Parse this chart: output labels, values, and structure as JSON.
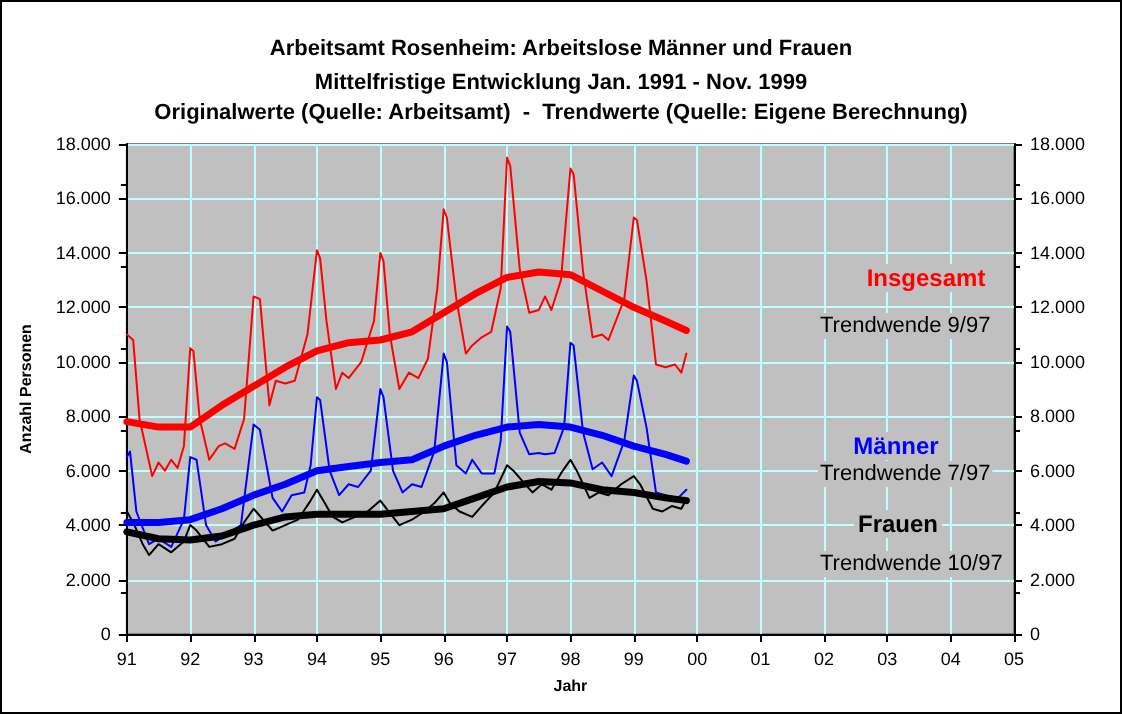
{
  "chart_data": {
    "type": "line",
    "title": "Arbeitsamt Rosenheim: Arbeitslose Männer und Frauen",
    "subtitle": "Mittelfristige Entwicklung Jan. 1991 - Nov. 1999\nOriginalwerte (Quelle: Arbeitsamt)  -  Trendwerte (Quelle: Eigene Berechnung)",
    "xlabel": "Jahr",
    "ylabel": "Anzahl Personen",
    "xlim": [
      1991,
      2005
    ],
    "xticks": [
      {
        "value": 1991,
        "label": "91"
      },
      {
        "value": 1992,
        "label": "92"
      },
      {
        "value": 1993,
        "label": "93"
      },
      {
        "value": 1994,
        "label": "94"
      },
      {
        "value": 1995,
        "label": "95"
      },
      {
        "value": 1996,
        "label": "96"
      },
      {
        "value": 1997,
        "label": "97"
      },
      {
        "value": 1998,
        "label": "98"
      },
      {
        "value": 1999,
        "label": "99"
      },
      {
        "value": 2000,
        "label": "00"
      },
      {
        "value": 2001,
        "label": "01"
      },
      {
        "value": 2002,
        "label": "02"
      },
      {
        "value": 2003,
        "label": "03"
      },
      {
        "value": 2004,
        "label": "04"
      },
      {
        "value": 2005,
        "label": "05"
      }
    ],
    "ylim": [
      0,
      18000
    ],
    "yticks": [
      0,
      {
        "value": 2000,
        "label": "2.000"
      },
      {
        "value": 4000,
        "label": "4.000"
      },
      {
        "value": 6000,
        "label": "6.000"
      },
      {
        "value": 8000,
        "label": "8.000"
      },
      {
        "value": 10000,
        "label": "10.000"
      },
      {
        "value": 12000,
        "label": "12.000"
      },
      {
        "value": 14000,
        "label": "14.000"
      },
      {
        "value": 16000,
        "label": "16.000"
      },
      {
        "value": 18000,
        "label": "18.000"
      }
    ],
    "y2lim": [
      0,
      18000
    ],
    "y2ticks": [
      0,
      {
        "value": 2000,
        "label": "2.000"
      },
      {
        "value": 4000,
        "label": "4.000"
      },
      {
        "value": 6000,
        "label": "6.000"
      },
      {
        "value": 8000,
        "label": "8.000"
      },
      {
        "value": 10000,
        "label": "10.000"
      },
      {
        "value": 12000,
        "label": "12.000"
      },
      {
        "value": 14000,
        "label": "14.000"
      },
      {
        "value": 16000,
        "label": "16.000"
      },
      {
        "value": 18000,
        "label": "18.000"
      }
    ],
    "grid": true,
    "marker": "none",
    "line_style": "solid",
    "series": [
      {
        "color": "#ff0000",
        "x": [
          1991,
          1991.05,
          1991.1,
          1991.2,
          1991.4,
          1991.5,
          1991.6,
          1991.7,
          1991.8,
          1991.9,
          1992,
          1992.05,
          1992.15,
          1992.3,
          1992.45,
          1992.55,
          1992.7,
          1992.85,
          1993,
          1993.1,
          1993.25,
          1993.35,
          1993.5,
          1993.65,
          1993.85,
          1994,
          1994.05,
          1994.15,
          1994.3,
          1994.4,
          1994.5,
          1994.7,
          1994.9,
          1995,
          1995.05,
          1995.15,
          1995.3,
          1995.45,
          1995.6,
          1995.75,
          1995.9,
          1996,
          1996.05,
          1996.2,
          1996.35,
          1996.45,
          1996.6,
          1996.75,
          1996.9,
          1997,
          1997.05,
          1997.2,
          1997.35,
          1997.5,
          1997.6,
          1997.7,
          1997.85,
          1998,
          1998.05,
          1998.2,
          1998.35,
          1998.5,
          1998.6,
          1998.85,
          1999,
          1999.05,
          1999.2,
          1999.35,
          1999.5,
          1999.65,
          1999.75,
          1999.83
        ],
        "values": [
          11000,
          10900,
          10800,
          7900,
          5800,
          6300,
          6000,
          6400,
          6100,
          6900,
          10500,
          10400,
          7900,
          6400,
          6900,
          7000,
          6800,
          7900,
          12400,
          12300,
          8400,
          9300,
          9200,
          9300,
          11000,
          14100,
          13800,
          11500,
          9000,
          9600,
          9400,
          10000,
          11500,
          14000,
          13700,
          11000,
          9000,
          9600,
          9400,
          10100,
          12700,
          15600,
          15300,
          12300,
          10300,
          10600,
          10900,
          11100,
          12700,
          17500,
          17200,
          13400,
          11800,
          11900,
          12400,
          11900,
          13000,
          17100,
          16900,
          13300,
          10900,
          11000,
          10800,
          12300,
          15300,
          15200,
          13000,
          9900,
          9800,
          9900,
          9600,
          10300
        ]
      },
      {
        "name": "Insgesamt",
        "color": "#ff0000",
        "x": [
          1991,
          1991.5,
          1992,
          1992.5,
          1993,
          1993.5,
          1994,
          1994.5,
          1995,
          1995.5,
          1996,
          1996.5,
          1997,
          1997.5,
          1998,
          1998.5,
          1999,
          1999.5,
          1999.83
        ],
        "values": [
          7800,
          7600,
          7600,
          8400,
          9100,
          9800,
          10400,
          10700,
          10800,
          11100,
          11800,
          12500,
          13100,
          13300,
          13200,
          12600,
          12000,
          11500,
          11150
        ]
      },
      {
        "color": "#0000ff",
        "x": [
          1991,
          1991.05,
          1991.15,
          1991.35,
          1991.5,
          1991.7,
          1991.9,
          1992,
          1992.1,
          1992.25,
          1992.4,
          1992.6,
          1992.8,
          1993,
          1993.1,
          1993.3,
          1993.45,
          1993.6,
          1993.8,
          1993.9,
          1994,
          1994.05,
          1994.2,
          1994.35,
          1994.5,
          1994.65,
          1994.85,
          1995,
          1995.05,
          1995.2,
          1995.35,
          1995.5,
          1995.65,
          1995.85,
          1996,
          1996.05,
          1996.2,
          1996.35,
          1996.45,
          1996.6,
          1996.8,
          1996.9,
          1997,
          1997.05,
          1997.2,
          1997.35,
          1997.5,
          1997.6,
          1997.75,
          1997.9,
          1998,
          1998.05,
          1998.2,
          1998.35,
          1998.5,
          1998.65,
          1998.85,
          1999,
          1999.05,
          1999.2,
          1999.35,
          1999.5,
          1999.7,
          1999.83
        ],
        "values": [
          6500,
          6700,
          4500,
          3300,
          3500,
          3200,
          4200,
          6500,
          6400,
          4000,
          3400,
          3700,
          4000,
          7700,
          7500,
          5000,
          4500,
          5100,
          5200,
          6200,
          8700,
          8600,
          6000,
          5100,
          5500,
          5400,
          6000,
          9000,
          8700,
          6000,
          5200,
          5500,
          5400,
          6700,
          10300,
          10000,
          6200,
          5900,
          6400,
          5900,
          5900,
          7100,
          11300,
          11100,
          7400,
          6600,
          6650,
          6600,
          6650,
          7600,
          10700,
          10600,
          7400,
          6050,
          6300,
          5800,
          7100,
          9500,
          9300,
          7600,
          5200,
          5100,
          5000,
          5300
        ]
      },
      {
        "name": "Männer",
        "color": "#0000ff",
        "x": [
          1991,
          1991.5,
          1992,
          1992.5,
          1993,
          1993.5,
          1994,
          1994.5,
          1995,
          1995.5,
          1996,
          1996.5,
          1997,
          1997.5,
          1998,
          1998.5,
          1999,
          1999.5,
          1999.83
        ],
        "values": [
          4100,
          4100,
          4200,
          4600,
          5100,
          5500,
          6000,
          6150,
          6300,
          6400,
          6900,
          7300,
          7600,
          7700,
          7600,
          7300,
          6900,
          6600,
          6350
        ]
      },
      {
        "color": "#000000",
        "x": [
          1991,
          1991.1,
          1991.25,
          1991.35,
          1991.5,
          1991.7,
          1991.9,
          1992,
          1992.1,
          1992.3,
          1992.5,
          1992.7,
          1992.85,
          1993,
          1993.15,
          1993.3,
          1993.5,
          1993.7,
          1993.9,
          1994,
          1994.1,
          1994.25,
          1994.4,
          1994.6,
          1994.8,
          1995,
          1995.1,
          1995.3,
          1995.5,
          1995.7,
          1995.85,
          1996,
          1996.1,
          1996.25,
          1996.45,
          1996.6,
          1996.8,
          1997,
          1997.1,
          1997.25,
          1997.4,
          1997.55,
          1997.7,
          1997.85,
          1998,
          1998.1,
          1998.3,
          1998.45,
          1998.6,
          1998.8,
          1999,
          1999.1,
          1999.3,
          1999.45,
          1999.6,
          1999.75,
          1999.83
        ],
        "values": [
          4500,
          4100,
          3300,
          2900,
          3300,
          3000,
          3400,
          4000,
          3800,
          3200,
          3300,
          3500,
          4100,
          4600,
          4200,
          3800,
          4000,
          4200,
          4900,
          5300,
          4900,
          4300,
          4100,
          4300,
          4500,
          4900,
          4600,
          4000,
          4200,
          4500,
          4800,
          5200,
          4800,
          4500,
          4300,
          4700,
          5200,
          6200,
          6000,
          5600,
          5200,
          5500,
          5300,
          5900,
          6400,
          6000,
          5000,
          5200,
          5100,
          5500,
          5800,
          5500,
          4600,
          4500,
          4700,
          4600,
          4950
        ]
      },
      {
        "name": "Frauen",
        "color": "#000000",
        "x": [
          1991,
          1991.5,
          1992,
          1992.5,
          1993,
          1993.5,
          1994,
          1994.5,
          1995,
          1995.5,
          1996,
          1996.5,
          1997,
          1997.5,
          1998,
          1998.5,
          1999,
          1999.5,
          1999.83
        ],
        "values": [
          3750,
          3500,
          3450,
          3600,
          4000,
          4300,
          4400,
          4400,
          4400,
          4500,
          4600,
          5000,
          5400,
          5600,
          5550,
          5300,
          5200,
          5000,
          4900
        ]
      }
    ],
    "annotations": [
      "Trendwende 9/97",
      "Trendwende 7/97",
      "Trendwende 10/97"
    ]
  }
}
